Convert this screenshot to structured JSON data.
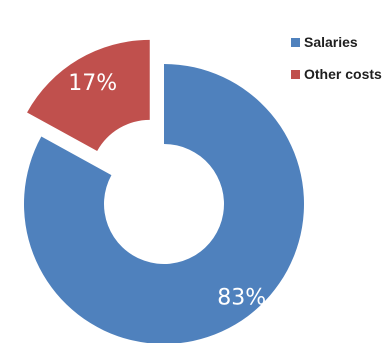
{
  "chart_data": {
    "type": "pie",
    "variant": "donut",
    "exploded_slice": "Other costs",
    "legend_position": "right",
    "categories": [
      "Salaries",
      "Other costs"
    ],
    "values": [
      83,
      17
    ],
    "labels": [
      "83%",
      "17%"
    ],
    "colors": [
      "#4f81bd",
      "#c0504d"
    ]
  }
}
